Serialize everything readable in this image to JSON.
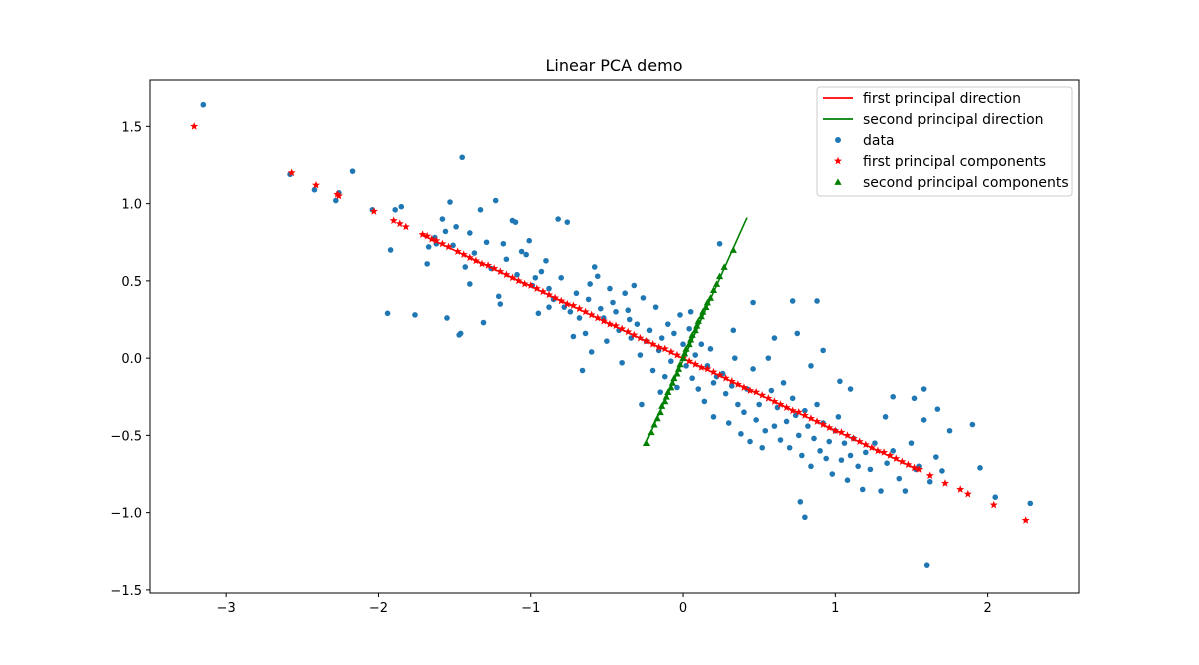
{
  "chart_data": {
    "type": "scatter",
    "title": "Linear PCA demo",
    "xlabel": "",
    "ylabel": "",
    "xlim": [
      -3.5,
      2.6
    ],
    "ylim": [
      -1.52,
      1.8
    ],
    "xticks": [
      -3,
      -2,
      -1,
      0,
      1,
      2
    ],
    "xtick_labels": [
      "−3",
      "−2",
      "−1",
      "0",
      "1",
      "2"
    ],
    "yticks": [
      -1.5,
      -1.0,
      -0.5,
      0.0,
      0.5,
      1.0,
      1.5
    ],
    "ytick_labels": [
      "−1.5",
      "−1.0",
      "−0.5",
      "0.0",
      "0.5",
      "1.0",
      "1.5"
    ],
    "grid": false,
    "legend_position": "top-right",
    "colors": {
      "data": "#1f77b4",
      "first": "#ff0000",
      "second": "#008000"
    },
    "legend": [
      {
        "label": "first principal direction",
        "marker": "line",
        "color": "#ff0000"
      },
      {
        "label": "second principal direction",
        "marker": "line",
        "color": "#008000"
      },
      {
        "label": "data",
        "marker": "circle",
        "color": "#1f77b4"
      },
      {
        "label": "first principal components",
        "marker": "star",
        "color": "#ff0000"
      },
      {
        "label": "second principal components",
        "marker": "triangle",
        "color": "#008000"
      }
    ],
    "first_direction": {
      "x": [
        -1.72,
        1.54
      ],
      "y": [
        0.8,
        -0.72
      ]
    },
    "second_direction": {
      "x": [
        -0.25,
        0.42
      ],
      "y": [
        -0.56,
        0.91
      ]
    },
    "data": [
      [
        -3.15,
        1.64
      ],
      [
        -2.58,
        1.19
      ],
      [
        -2.42,
        1.09
      ],
      [
        -2.28,
        1.02
      ],
      [
        -2.26,
        1.07
      ],
      [
        -2.17,
        1.21
      ],
      [
        -2.04,
        0.96
      ],
      [
        -1.92,
        0.7
      ],
      [
        -1.94,
        0.29
      ],
      [
        -1.89,
        0.96
      ],
      [
        -1.85,
        0.98
      ],
      [
        -1.76,
        0.28
      ],
      [
        -1.68,
        0.61
      ],
      [
        -1.67,
        0.72
      ],
      [
        -1.63,
        0.78
      ],
      [
        -1.62,
        0.74
      ],
      [
        -1.58,
        0.9
      ],
      [
        -1.56,
        0.82
      ],
      [
        -1.55,
        0.26
      ],
      [
        -1.53,
        1.01
      ],
      [
        -1.51,
        0.73
      ],
      [
        -1.49,
        0.85
      ],
      [
        -1.47,
        0.15
      ],
      [
        -1.46,
        0.16
      ],
      [
        -1.45,
        1.3
      ],
      [
        -1.43,
        0.59
      ],
      [
        -1.4,
        0.81
      ],
      [
        -1.37,
        0.68
      ],
      [
        -1.33,
        0.96
      ],
      [
        -1.31,
        0.23
      ],
      [
        -1.29,
        0.75
      ],
      [
        -1.26,
        0.58
      ],
      [
        -1.23,
        1.02
      ],
      [
        -1.21,
        0.4
      ],
      [
        -1.18,
        0.74
      ],
      [
        -1.16,
        0.64
      ],
      [
        -1.12,
        0.89
      ],
      [
        -1.1,
        0.88
      ],
      [
        -1.09,
        0.54
      ],
      [
        -1.06,
        0.69
      ],
      [
        -1.03,
        0.67
      ],
      [
        -1.01,
        0.76
      ],
      [
        -0.99,
        0.47
      ],
      [
        -0.97,
        0.52
      ],
      [
        -0.95,
        0.29
      ],
      [
        -0.93,
        0.56
      ],
      [
        -0.9,
        0.63
      ],
      [
        -0.88,
        0.45
      ],
      [
        -0.85,
        0.38
      ],
      [
        -0.82,
        0.9
      ],
      [
        -0.8,
        0.52
      ],
      [
        -0.78,
        0.33
      ],
      [
        -0.76,
        0.88
      ],
      [
        -0.74,
        0.3
      ],
      [
        -0.72,
        0.14
      ],
      [
        -0.7,
        0.42
      ],
      [
        -0.68,
        0.26
      ],
      [
        -0.66,
        -0.08
      ],
      [
        -0.64,
        0.16
      ],
      [
        -0.62,
        0.38
      ],
      [
        -0.6,
        0.04
      ],
      [
        -0.58,
        0.59
      ],
      [
        -0.56,
        0.53
      ],
      [
        -0.54,
        0.32
      ],
      [
        -0.52,
        0.26
      ],
      [
        -0.5,
        0.11
      ],
      [
        -0.48,
        0.45
      ],
      [
        -0.46,
        0.36
      ],
      [
        -0.44,
        0.3
      ],
      [
        -0.42,
        0.18
      ],
      [
        -0.4,
        -0.03
      ],
      [
        -0.38,
        0.42
      ],
      [
        -0.36,
        0.31
      ],
      [
        -0.34,
        0.13
      ],
      [
        -0.32,
        0.47
      ],
      [
        -0.3,
        0.22
      ],
      [
        -0.28,
        0.02
      ],
      [
        -0.26,
        0.39
      ],
      [
        -0.24,
        0.11
      ],
      [
        -0.22,
        0.18
      ],
      [
        -0.2,
        -0.08
      ],
      [
        -0.18,
        0.33
      ],
      [
        -0.16,
        0.05
      ],
      [
        -0.14,
        0.13
      ],
      [
        -0.12,
        -0.12
      ],
      [
        -0.1,
        0.22
      ],
      [
        -0.08,
        -0.02
      ],
      [
        -0.06,
        0.16
      ],
      [
        -0.04,
        -0.19
      ],
      [
        -0.02,
        0.28
      ],
      [
        0.0,
        0.09
      ],
      [
        0.02,
        -0.05
      ],
      [
        0.04,
        0.19
      ],
      [
        0.06,
        -0.13
      ],
      [
        0.08,
        0.02
      ],
      [
        0.1,
        -0.2
      ],
      [
        0.12,
        0.09
      ],
      [
        0.14,
        -0.28
      ],
      [
        0.16,
        -0.05
      ],
      [
        0.18,
        0.06
      ],
      [
        0.2,
        -0.38
      ],
      [
        0.22,
        -0.12
      ],
      [
        0.24,
        0.74
      ],
      [
        0.26,
        -0.1
      ],
      [
        0.28,
        -0.23
      ],
      [
        0.3,
        -0.42
      ],
      [
        0.32,
        -0.18
      ],
      [
        0.34,
        0.0
      ],
      [
        0.36,
        -0.3
      ],
      [
        0.38,
        -0.49
      ],
      [
        0.4,
        -0.35
      ],
      [
        0.42,
        -0.2
      ],
      [
        0.44,
        -0.54
      ],
      [
        0.46,
        -0.07
      ],
      [
        0.48,
        -0.4
      ],
      [
        0.5,
        -0.3
      ],
      [
        0.52,
        -0.58
      ],
      [
        0.54,
        -0.47
      ],
      [
        0.56,
        0.0
      ],
      [
        0.58,
        -0.21
      ],
      [
        0.6,
        -0.44
      ],
      [
        0.62,
        -0.32
      ],
      [
        0.64,
        -0.53
      ],
      [
        0.66,
        -0.16
      ],
      [
        0.68,
        -0.41
      ],
      [
        0.7,
        -0.58
      ],
      [
        0.72,
        -0.26
      ],
      [
        0.74,
        -0.37
      ],
      [
        0.76,
        -0.5
      ],
      [
        0.78,
        -0.63
      ],
      [
        0.8,
        -0.34
      ],
      [
        0.82,
        -0.44
      ],
      [
        0.84,
        -0.7
      ],
      [
        0.86,
        -0.52
      ],
      [
        0.88,
        -0.3
      ],
      [
        0.9,
        -0.6
      ],
      [
        0.92,
        -0.42
      ],
      [
        0.94,
        -0.65
      ],
      [
        0.96,
        -0.54
      ],
      [
        0.98,
        -0.75
      ],
      [
        1.0,
        -0.47
      ],
      [
        1.02,
        -0.38
      ],
      [
        1.04,
        -0.66
      ],
      [
        1.06,
        -0.55
      ],
      [
        1.08,
        -0.79
      ],
      [
        1.1,
        -0.63
      ],
      [
        1.12,
        -0.52
      ],
      [
        1.15,
        -0.7
      ],
      [
        1.18,
        -0.85
      ],
      [
        1.2,
        -0.61
      ],
      [
        1.23,
        -0.72
      ],
      [
        1.26,
        -0.55
      ],
      [
        1.3,
        -0.86
      ],
      [
        1.34,
        -0.68
      ],
      [
        1.38,
        -0.6
      ],
      [
        1.42,
        -0.78
      ],
      [
        1.46,
        -0.86
      ],
      [
        1.5,
        -0.55
      ],
      [
        1.53,
        -0.72
      ],
      [
        1.55,
        -0.7
      ],
      [
        1.58,
        -0.4
      ],
      [
        1.62,
        -0.8
      ],
      [
        1.66,
        -0.64
      ],
      [
        1.7,
        -0.73
      ],
      [
        1.75,
        -0.47
      ],
      [
        1.9,
        -0.43
      ],
      [
        1.95,
        -0.71
      ],
      [
        2.05,
        -0.9
      ],
      [
        2.28,
        -0.94
      ],
      [
        0.77,
        -0.93
      ],
      [
        0.8,
        -1.03
      ],
      [
        1.6,
        -1.34
      ],
      [
        0.88,
        0.37
      ],
      [
        0.72,
        0.37
      ],
      [
        0.46,
        0.36
      ],
      [
        0.6,
        0.13
      ],
      [
        0.75,
        0.16
      ],
      [
        0.84,
        -0.05
      ],
      [
        0.92,
        0.05
      ],
      [
        1.03,
        -0.15
      ],
      [
        1.1,
        -0.2
      ],
      [
        1.38,
        -0.25
      ],
      [
        1.58,
        -0.2
      ],
      [
        1.33,
        -0.38
      ],
      [
        1.52,
        -0.26
      ],
      [
        1.67,
        -0.33
      ],
      [
        0.33,
        0.18
      ],
      [
        0.2,
        -0.16
      ],
      [
        0.05,
        0.3
      ],
      [
        -0.35,
        0.25
      ],
      [
        -0.15,
        -0.22
      ],
      [
        -0.27,
        -0.3
      ],
      [
        -0.61,
        0.48
      ],
      [
        -0.88,
        0.33
      ],
      [
        -1.2,
        0.35
      ],
      [
        -1.4,
        0.48
      ]
    ],
    "first_components": [
      [
        -3.21,
        1.5
      ],
      [
        -2.57,
        1.2
      ],
      [
        -2.41,
        1.12
      ],
      [
        -2.27,
        1.06
      ],
      [
        -2.26,
        1.05
      ],
      [
        -2.03,
        0.95
      ],
      [
        -1.9,
        0.89
      ],
      [
        -1.86,
        0.87
      ],
      [
        -1.82,
        0.85
      ],
      [
        -1.71,
        0.8
      ],
      [
        -1.68,
        0.79
      ],
      [
        -1.65,
        0.77
      ],
      [
        -1.62,
        0.76
      ],
      [
        -1.58,
        0.74
      ],
      [
        -1.54,
        0.72
      ],
      [
        -1.48,
        0.69
      ],
      [
        -1.44,
        0.67
      ],
      [
        -1.4,
        0.65
      ],
      [
        -1.36,
        0.63
      ],
      [
        -1.32,
        0.61
      ],
      [
        -1.28,
        0.6
      ],
      [
        -1.24,
        0.58
      ],
      [
        -1.2,
        0.56
      ],
      [
        -1.16,
        0.54
      ],
      [
        -1.12,
        0.52
      ],
      [
        -1.08,
        0.5
      ],
      [
        -1.04,
        0.48
      ],
      [
        -1.0,
        0.47
      ],
      [
        -0.96,
        0.45
      ],
      [
        -0.92,
        0.43
      ],
      [
        -0.88,
        0.41
      ],
      [
        -0.84,
        0.39
      ],
      [
        -0.8,
        0.37
      ],
      [
        -0.76,
        0.35
      ],
      [
        -0.72,
        0.34
      ],
      [
        -0.68,
        0.32
      ],
      [
        -0.64,
        0.3
      ],
      [
        -0.6,
        0.28
      ],
      [
        -0.56,
        0.26
      ],
      [
        -0.52,
        0.24
      ],
      [
        -0.48,
        0.22
      ],
      [
        -0.44,
        0.21
      ],
      [
        -0.4,
        0.19
      ],
      [
        -0.36,
        0.17
      ],
      [
        -0.32,
        0.15
      ],
      [
        -0.28,
        0.13
      ],
      [
        -0.24,
        0.11
      ],
      [
        -0.2,
        0.09
      ],
      [
        -0.16,
        0.07
      ],
      [
        -0.12,
        0.06
      ],
      [
        -0.08,
        0.04
      ],
      [
        -0.04,
        0.02
      ],
      [
        0.0,
        0.0
      ],
      [
        0.04,
        -0.02
      ],
      [
        0.08,
        -0.04
      ],
      [
        0.12,
        -0.06
      ],
      [
        0.16,
        -0.07
      ],
      [
        0.2,
        -0.09
      ],
      [
        0.24,
        -0.11
      ],
      [
        0.28,
        -0.13
      ],
      [
        0.32,
        -0.15
      ],
      [
        0.36,
        -0.17
      ],
      [
        0.4,
        -0.19
      ],
      [
        0.44,
        -0.21
      ],
      [
        0.48,
        -0.22
      ],
      [
        0.52,
        -0.24
      ],
      [
        0.56,
        -0.26
      ],
      [
        0.6,
        -0.28
      ],
      [
        0.64,
        -0.3
      ],
      [
        0.68,
        -0.32
      ],
      [
        0.72,
        -0.34
      ],
      [
        0.76,
        -0.35
      ],
      [
        0.8,
        -0.37
      ],
      [
        0.84,
        -0.39
      ],
      [
        0.88,
        -0.41
      ],
      [
        0.92,
        -0.43
      ],
      [
        0.96,
        -0.45
      ],
      [
        1.0,
        -0.47
      ],
      [
        1.04,
        -0.48
      ],
      [
        1.08,
        -0.5
      ],
      [
        1.12,
        -0.52
      ],
      [
        1.16,
        -0.54
      ],
      [
        1.2,
        -0.56
      ],
      [
        1.24,
        -0.58
      ],
      [
        1.28,
        -0.6
      ],
      [
        1.32,
        -0.61
      ],
      [
        1.36,
        -0.63
      ],
      [
        1.4,
        -0.65
      ],
      [
        1.44,
        -0.67
      ],
      [
        1.48,
        -0.69
      ],
      [
        1.52,
        -0.71
      ],
      [
        1.55,
        -0.72
      ],
      [
        1.62,
        -0.76
      ],
      [
        1.72,
        -0.81
      ],
      [
        1.82,
        -0.85
      ],
      [
        1.87,
        -0.88
      ],
      [
        2.04,
        -0.95
      ],
      [
        2.25,
        -1.05
      ]
    ],
    "second_components": [
      [
        -0.24,
        -0.55
      ],
      [
        -0.21,
        -0.48
      ],
      [
        -0.19,
        -0.43
      ],
      [
        -0.17,
        -0.39
      ],
      [
        -0.15,
        -0.35
      ],
      [
        -0.14,
        -0.31
      ],
      [
        -0.12,
        -0.28
      ],
      [
        -0.11,
        -0.25
      ],
      [
        -0.1,
        -0.22
      ],
      [
        -0.08,
        -0.19
      ],
      [
        -0.07,
        -0.16
      ],
      [
        -0.06,
        -0.13
      ],
      [
        -0.04,
        -0.1
      ],
      [
        -0.03,
        -0.07
      ],
      [
        -0.02,
        -0.04
      ],
      [
        0.0,
        0.0
      ],
      [
        0.01,
        0.03
      ],
      [
        0.02,
        0.06
      ],
      [
        0.04,
        0.09
      ],
      [
        0.05,
        0.12
      ],
      [
        0.06,
        0.15
      ],
      [
        0.08,
        0.18
      ],
      [
        0.09,
        0.21
      ],
      [
        0.1,
        0.24
      ],
      [
        0.12,
        0.27
      ],
      [
        0.13,
        0.3
      ],
      [
        0.15,
        0.33
      ],
      [
        0.16,
        0.36
      ],
      [
        0.18,
        0.39
      ],
      [
        0.2,
        0.44
      ],
      [
        0.22,
        0.48
      ],
      [
        0.24,
        0.53
      ],
      [
        0.27,
        0.59
      ],
      [
        0.33,
        0.7
      ]
    ]
  }
}
